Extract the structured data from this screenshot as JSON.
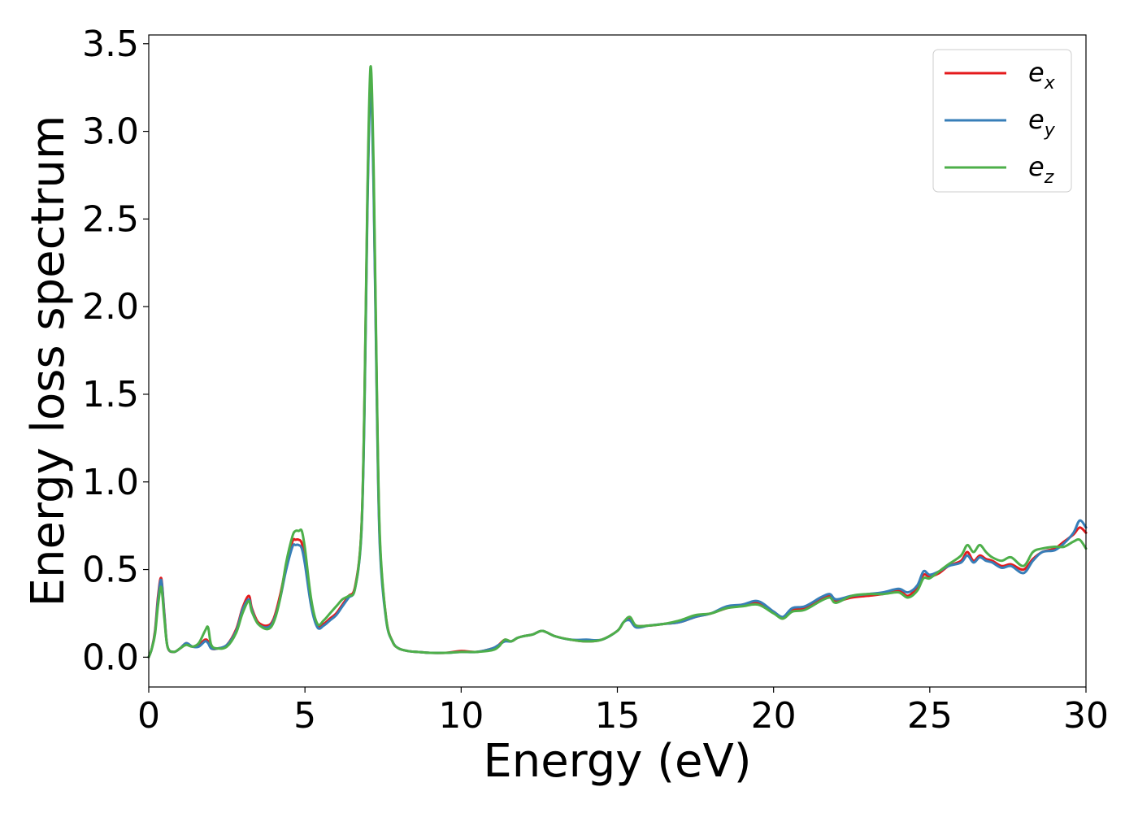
{
  "chart_data": {
    "type": "line",
    "xlabel": "Energy (eV)",
    "ylabel": "Energy loss spectrum",
    "xlim": [
      0,
      30
    ],
    "ylim": [
      -0.17,
      3.55
    ],
    "xticks": [
      "0",
      "5",
      "10",
      "15",
      "20",
      "25",
      "30"
    ],
    "yticks": [
      "0.0",
      "0.5",
      "1.0",
      "1.5",
      "2.0",
      "2.5",
      "3.0",
      "3.5"
    ],
    "grid": false,
    "legend_position": "top-right",
    "series": [
      {
        "name": "e",
        "subscript": "x",
        "color": "#e41a1c",
        "x": [
          0,
          0.1,
          0.2,
          0.3,
          0.4,
          0.5,
          0.6,
          0.8,
          1.0,
          1.2,
          1.4,
          1.6,
          1.8,
          1.9,
          2.0,
          2.2,
          2.5,
          2.8,
          3.0,
          3.2,
          3.3,
          3.5,
          3.8,
          4.0,
          4.2,
          4.4,
          4.6,
          4.7,
          4.8,
          4.9,
          5.0,
          5.2,
          5.4,
          5.6,
          5.8,
          6.0,
          6.2,
          6.4,
          6.6,
          6.8,
          6.9,
          7.0,
          7.1,
          7.2,
          7.3,
          7.4,
          7.6,
          7.8,
          8.0,
          8.3,
          8.6,
          9.0,
          9.5,
          10.0,
          10.5,
          11.0,
          11.2,
          11.4,
          11.6,
          11.8,
          12.0,
          12.3,
          12.6,
          13.0,
          13.5,
          14.0,
          14.5,
          15.0,
          15.2,
          15.4,
          15.6,
          16.0,
          16.5,
          17.0,
          17.5,
          18.0,
          18.5,
          19.0,
          19.5,
          20.0,
          20.3,
          20.6,
          21.0,
          21.5,
          21.8,
          22.0,
          22.5,
          23.0,
          23.5,
          24.0,
          24.3,
          24.6,
          24.8,
          25.0,
          25.3,
          25.6,
          26.0,
          26.2,
          26.4,
          26.6,
          26.8,
          27.0,
          27.3,
          27.6,
          28.0,
          28.3,
          28.6,
          29.0,
          29.3,
          29.6,
          29.8,
          30.0
        ],
        "y": [
          0.0,
          0.05,
          0.15,
          0.35,
          0.45,
          0.25,
          0.06,
          0.03,
          0.05,
          0.08,
          0.06,
          0.07,
          0.1,
          0.09,
          0.05,
          0.05,
          0.07,
          0.16,
          0.28,
          0.35,
          0.28,
          0.2,
          0.18,
          0.22,
          0.35,
          0.52,
          0.66,
          0.67,
          0.67,
          0.65,
          0.55,
          0.3,
          0.18,
          0.19,
          0.22,
          0.25,
          0.3,
          0.35,
          0.4,
          0.7,
          1.4,
          2.6,
          3.3,
          2.7,
          1.5,
          0.65,
          0.22,
          0.09,
          0.05,
          0.035,
          0.03,
          0.025,
          0.025,
          0.035,
          0.03,
          0.05,
          0.07,
          0.1,
          0.09,
          0.11,
          0.12,
          0.13,
          0.15,
          0.12,
          0.1,
          0.09,
          0.1,
          0.15,
          0.2,
          0.22,
          0.18,
          0.18,
          0.19,
          0.2,
          0.23,
          0.25,
          0.28,
          0.3,
          0.31,
          0.26,
          0.22,
          0.27,
          0.28,
          0.33,
          0.35,
          0.32,
          0.34,
          0.35,
          0.36,
          0.38,
          0.35,
          0.4,
          0.47,
          0.46,
          0.48,
          0.52,
          0.55,
          0.6,
          0.55,
          0.58,
          0.56,
          0.55,
          0.52,
          0.53,
          0.5,
          0.56,
          0.6,
          0.62,
          0.66,
          0.7,
          0.74,
          0.71
        ]
      },
      {
        "name": "e",
        "subscript": "y",
        "color": "#377eb8",
        "x": [
          0,
          0.1,
          0.2,
          0.3,
          0.4,
          0.5,
          0.6,
          0.8,
          1.0,
          1.2,
          1.4,
          1.6,
          1.8,
          1.9,
          2.0,
          2.2,
          2.5,
          2.8,
          3.0,
          3.2,
          3.3,
          3.5,
          3.8,
          4.0,
          4.2,
          4.4,
          4.6,
          4.7,
          4.8,
          4.9,
          5.0,
          5.2,
          5.4,
          5.6,
          5.8,
          6.0,
          6.2,
          6.4,
          6.6,
          6.8,
          6.9,
          7.0,
          7.1,
          7.2,
          7.3,
          7.4,
          7.6,
          7.8,
          8.0,
          8.3,
          8.6,
          9.0,
          9.5,
          10.0,
          10.5,
          11.0,
          11.2,
          11.4,
          11.6,
          11.8,
          12.0,
          12.3,
          12.6,
          13.0,
          13.5,
          14.0,
          14.5,
          15.0,
          15.2,
          15.4,
          15.6,
          16.0,
          16.5,
          17.0,
          17.5,
          18.0,
          18.5,
          19.0,
          19.5,
          20.0,
          20.3,
          20.6,
          21.0,
          21.5,
          21.8,
          22.0,
          22.5,
          23.0,
          23.5,
          24.0,
          24.3,
          24.6,
          24.8,
          25.0,
          25.3,
          25.6,
          26.0,
          26.2,
          26.4,
          26.6,
          26.8,
          27.0,
          27.3,
          27.6,
          28.0,
          28.3,
          28.6,
          29.0,
          29.3,
          29.6,
          29.8,
          30.0
        ],
        "y": [
          0.0,
          0.05,
          0.14,
          0.33,
          0.44,
          0.24,
          0.06,
          0.03,
          0.05,
          0.08,
          0.06,
          0.06,
          0.09,
          0.08,
          0.05,
          0.05,
          0.07,
          0.15,
          0.27,
          0.33,
          0.27,
          0.19,
          0.17,
          0.21,
          0.33,
          0.5,
          0.63,
          0.64,
          0.64,
          0.62,
          0.53,
          0.29,
          0.17,
          0.18,
          0.21,
          0.24,
          0.29,
          0.34,
          0.39,
          0.68,
          1.35,
          2.55,
          3.25,
          2.65,
          1.45,
          0.62,
          0.21,
          0.09,
          0.05,
          0.035,
          0.03,
          0.025,
          0.025,
          0.03,
          0.03,
          0.05,
          0.07,
          0.09,
          0.09,
          0.11,
          0.12,
          0.13,
          0.15,
          0.12,
          0.1,
          0.1,
          0.1,
          0.15,
          0.2,
          0.21,
          0.17,
          0.18,
          0.19,
          0.2,
          0.23,
          0.25,
          0.29,
          0.3,
          0.32,
          0.26,
          0.23,
          0.28,
          0.29,
          0.34,
          0.36,
          0.33,
          0.35,
          0.36,
          0.37,
          0.39,
          0.37,
          0.41,
          0.49,
          0.47,
          0.49,
          0.52,
          0.54,
          0.58,
          0.54,
          0.57,
          0.55,
          0.54,
          0.51,
          0.52,
          0.48,
          0.55,
          0.6,
          0.61,
          0.65,
          0.71,
          0.78,
          0.74
        ]
      },
      {
        "name": "e",
        "subscript": "z",
        "color": "#4daf4a",
        "x": [
          0,
          0.1,
          0.2,
          0.3,
          0.4,
          0.5,
          0.6,
          0.8,
          1.0,
          1.2,
          1.4,
          1.6,
          1.8,
          1.9,
          2.0,
          2.2,
          2.5,
          2.8,
          3.0,
          3.2,
          3.3,
          3.5,
          3.8,
          4.0,
          4.2,
          4.4,
          4.6,
          4.7,
          4.8,
          4.9,
          5.0,
          5.2,
          5.4,
          5.6,
          5.8,
          6.0,
          6.2,
          6.4,
          6.6,
          6.8,
          6.9,
          7.0,
          7.1,
          7.2,
          7.3,
          7.4,
          7.6,
          7.8,
          8.0,
          8.3,
          8.6,
          9.0,
          9.5,
          10.0,
          10.5,
          11.0,
          11.2,
          11.4,
          11.6,
          11.8,
          12.0,
          12.3,
          12.6,
          13.0,
          13.5,
          14.0,
          14.5,
          15.0,
          15.2,
          15.4,
          15.6,
          16.0,
          16.5,
          17.0,
          17.5,
          18.0,
          18.5,
          19.0,
          19.5,
          20.0,
          20.3,
          20.6,
          21.0,
          21.5,
          21.8,
          22.0,
          22.5,
          23.0,
          23.5,
          24.0,
          24.3,
          24.6,
          24.8,
          25.0,
          25.3,
          25.6,
          26.0,
          26.2,
          26.4,
          26.6,
          26.8,
          27.0,
          27.3,
          27.6,
          28.0,
          28.3,
          28.6,
          29.0,
          29.3,
          29.6,
          29.8,
          30.0
        ],
        "y": [
          0.0,
          0.05,
          0.13,
          0.3,
          0.4,
          0.22,
          0.06,
          0.03,
          0.05,
          0.07,
          0.06,
          0.08,
          0.15,
          0.17,
          0.07,
          0.05,
          0.06,
          0.14,
          0.25,
          0.32,
          0.26,
          0.19,
          0.16,
          0.2,
          0.33,
          0.54,
          0.69,
          0.72,
          0.72,
          0.72,
          0.62,
          0.33,
          0.19,
          0.21,
          0.25,
          0.29,
          0.33,
          0.35,
          0.39,
          0.7,
          1.42,
          2.65,
          3.37,
          2.78,
          1.55,
          0.68,
          0.22,
          0.09,
          0.05,
          0.035,
          0.03,
          0.025,
          0.025,
          0.03,
          0.03,
          0.04,
          0.06,
          0.1,
          0.09,
          0.11,
          0.12,
          0.13,
          0.15,
          0.12,
          0.1,
          0.09,
          0.1,
          0.15,
          0.2,
          0.23,
          0.18,
          0.18,
          0.19,
          0.21,
          0.24,
          0.25,
          0.28,
          0.29,
          0.3,
          0.25,
          0.22,
          0.26,
          0.27,
          0.32,
          0.34,
          0.31,
          0.35,
          0.36,
          0.36,
          0.37,
          0.34,
          0.38,
          0.45,
          0.45,
          0.49,
          0.53,
          0.58,
          0.64,
          0.6,
          0.64,
          0.6,
          0.57,
          0.55,
          0.57,
          0.52,
          0.6,
          0.62,
          0.63,
          0.63,
          0.66,
          0.67,
          0.62
        ]
      }
    ]
  }
}
